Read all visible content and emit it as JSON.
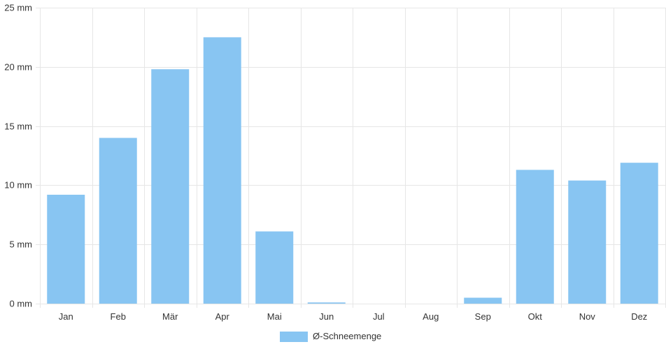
{
  "chart_data": {
    "type": "bar",
    "categories": [
      "Jan",
      "Feb",
      "Mär",
      "Apr",
      "Mai",
      "Jun",
      "Jul",
      "Aug",
      "Sep",
      "Okt",
      "Nov",
      "Dez"
    ],
    "series": [
      {
        "name": "Ø-Schneemenge",
        "values": [
          9.2,
          14.0,
          19.8,
          22.5,
          6.1,
          0.1,
          0,
          0,
          0.5,
          11.3,
          10.4,
          11.9
        ]
      }
    ],
    "y_ticks": [
      "0 mm",
      "5 mm",
      "10 mm",
      "15 mm",
      "20 mm",
      "25 mm"
    ],
    "ylim": [
      0,
      25
    ],
    "grid": true,
    "legend": "bottom-center",
    "bar_color": "#88c5f2",
    "grid_color": "#e6e6e6"
  }
}
